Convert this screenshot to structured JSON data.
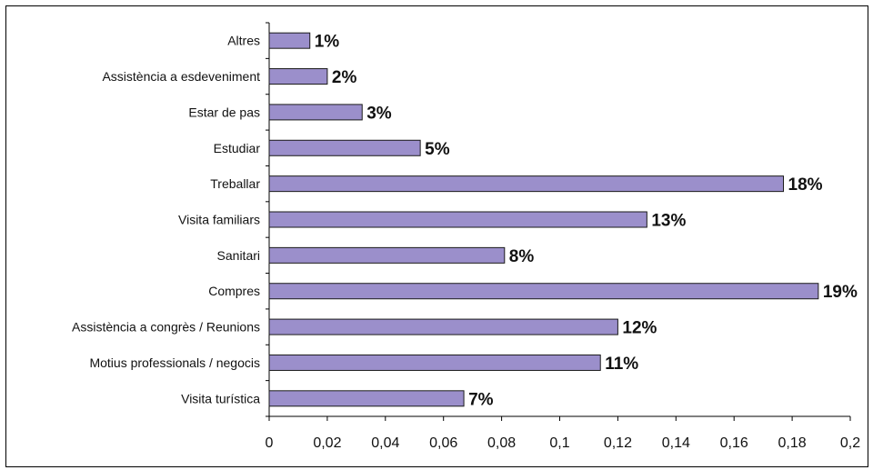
{
  "chart_data": {
    "type": "bar",
    "orientation": "horizontal",
    "categories": [
      "Altres",
      "Assistència a esdeveniment",
      "Estar de pas",
      "Estudiar",
      "Treballar",
      "Visita familiars",
      "Sanitari",
      "Compres",
      "Assistència a congrès / Reunions",
      "Motius professionals / negocis",
      "Visita turística"
    ],
    "values": [
      0.014,
      0.02,
      0.032,
      0.052,
      0.177,
      0.13,
      0.081,
      0.189,
      0.12,
      0.114,
      0.067
    ],
    "data_labels": [
      "1%",
      "2%",
      "3%",
      "5%",
      "18%",
      "13%",
      "8%",
      "19%",
      "12%",
      "11%",
      "7%"
    ],
    "xlim": [
      0,
      0.2
    ],
    "x_ticks": [
      "0",
      "0,02",
      "0,04",
      "0,06",
      "0,08",
      "0,1",
      "0,12",
      "0,14",
      "0,16",
      "0,18",
      "0,2"
    ],
    "title": "",
    "xlabel": "",
    "ylabel": "",
    "grid": false,
    "legend": "none",
    "bar_color": "#9b8fcb",
    "bar_border_color": "#1a1a1a"
  }
}
